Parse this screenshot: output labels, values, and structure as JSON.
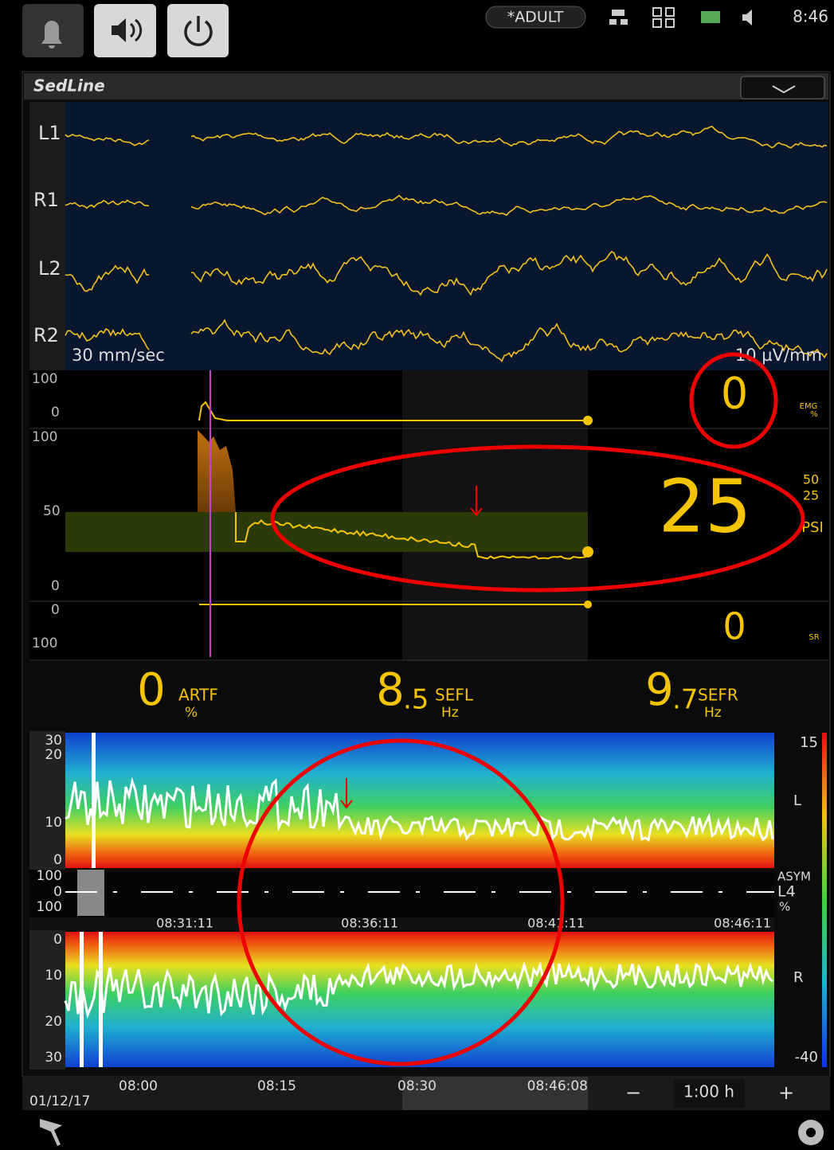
{
  "top_bar": {
    "mode": "*ADULT",
    "time": "8:46"
  },
  "panel": {
    "title": "SedLine"
  },
  "eeg": {
    "channels": [
      "L1",
      "R1",
      "L2",
      "R2"
    ],
    "speed": "30 mm/sec",
    "scale": "10 µV/mm"
  },
  "trends": {
    "emg": {
      "scale_top": "100",
      "scale_bottom": "0",
      "value": "0",
      "label": "EMG",
      "unit": "%"
    },
    "psi": {
      "scale_top": "100",
      "scale_mid": "50",
      "scale_bottom": "0",
      "value": "25",
      "limit_high": "50",
      "limit_low": "25",
      "label": "PSI"
    },
    "sr": {
      "scale_top": "0",
      "scale_bottom": "100",
      "value": "0",
      "label": "SR"
    }
  },
  "parameters": [
    {
      "int": "0",
      "frac": "",
      "label": "ARTF",
      "unit": "%"
    },
    {
      "int": "8",
      "frac": ".5",
      "label": "SEFL",
      "unit": "Hz"
    },
    {
      "int": "9",
      "frac": ".7",
      "label": "SEFR",
      "unit": "Hz"
    }
  ],
  "spectrogram": {
    "left_scale": [
      "30",
      "20",
      "10",
      "0"
    ],
    "asym_scale": [
      "100",
      "0",
      "100"
    ],
    "times": [
      "08:31:11",
      "08:36:11",
      "08:41:11",
      "08:46:11"
    ],
    "right_scale": [
      "0",
      "10",
      "20",
      "30"
    ],
    "colorbar_top": "15",
    "colorbar_bottom": "-40",
    "left_label": "L",
    "right_label": "R",
    "asym_label": "ASYM",
    "asym_channel": "L4",
    "asym_unit": "%"
  },
  "timeline": {
    "ticks": [
      "08:00",
      "08:15",
      "08:30",
      "08:46:08"
    ],
    "date": "01/12/17",
    "minus": "−",
    "zoom": "1:00 h",
    "plus": "+"
  }
}
